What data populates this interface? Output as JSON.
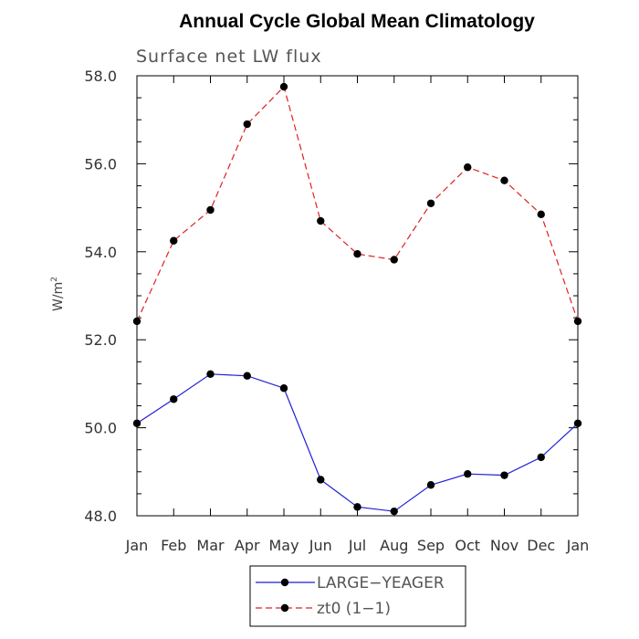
{
  "chart_data": {
    "type": "line",
    "title": "Annual Cycle Global Mean Climatology",
    "subtitle": "Surface net LW flux",
    "ylabel": "W/m",
    "ylabel_superscript": "2",
    "xlabel": "",
    "categories": [
      "Jan",
      "Feb",
      "Mar",
      "Apr",
      "May",
      "Jun",
      "Jul",
      "Aug",
      "Sep",
      "Oct",
      "Nov",
      "Dec",
      "Jan"
    ],
    "ylim": [
      48.0,
      58.0
    ],
    "yticks": [
      "48.0",
      "50.0",
      "52.0",
      "54.0",
      "56.0",
      "58.0"
    ],
    "grid": false,
    "legend_position": "bottom-center",
    "series": [
      {
        "name": "LARGE−YEAGER",
        "color": "#1f1fd6",
        "style": "solid",
        "marker": "circle",
        "values": [
          50.1,
          50.65,
          51.22,
          51.18,
          50.9,
          48.82,
          48.2,
          48.1,
          48.7,
          48.95,
          48.92,
          49.33,
          50.1
        ]
      },
      {
        "name": "zt0 (1−1)",
        "color": "#e02020",
        "style": "dashed",
        "marker": "circle",
        "values": [
          52.42,
          54.25,
          54.95,
          56.9,
          57.75,
          54.7,
          53.95,
          53.82,
          55.1,
          55.92,
          55.62,
          54.85,
          52.42
        ]
      }
    ]
  }
}
